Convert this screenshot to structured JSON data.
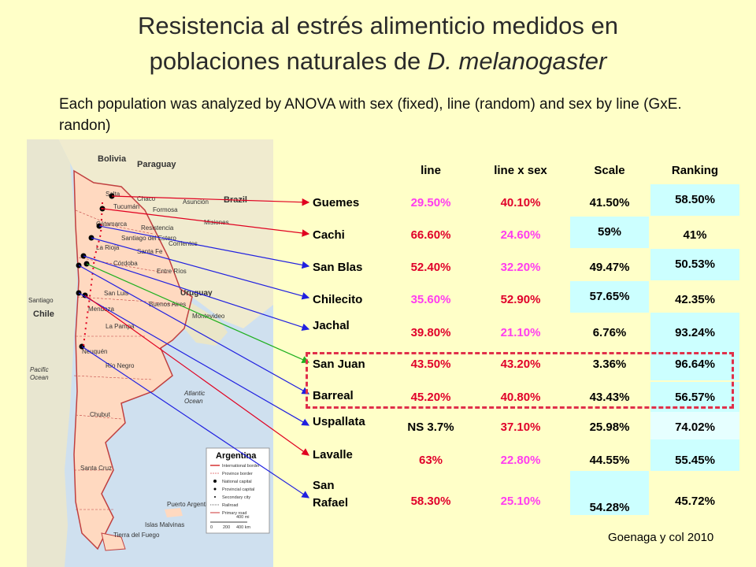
{
  "title": {
    "line1": "Resistencia al estrés  alimenticio medidos en",
    "line2_prefix": "poblaciones naturales de ",
    "line2_species": "D. melanogaster"
  },
  "subtitle": "Each population was analyzed by ANOVA with sex (fixed), line (random) and sex by line (GxE. randon)",
  "table": {
    "headers": {
      "line": "line",
      "line_x_sex": "line x sex",
      "scale": "Scale",
      "ranking": "Ranking"
    },
    "rows": [
      {
        "pop": "Guemes",
        "line": "29.50%",
        "lxs": "40.10%",
        "scale": "41.50%",
        "rank": "58.50%"
      },
      {
        "pop": "Cachi",
        "line": "66.60%",
        "lxs": "24.60%",
        "scale": "59%",
        "rank": "41%"
      },
      {
        "pop": "San Blas",
        "line": "52.40%",
        "lxs": "32.20%",
        "scale": "49.47%",
        "rank": "50.53%"
      },
      {
        "pop": "Chilecito",
        "line": "35.60%",
        "lxs": "52.90%",
        "scale": "57.65%",
        "rank": "42.35%"
      },
      {
        "pop": "Jachal",
        "line": "39.80%",
        "lxs": "21.10%",
        "scale": "6.76%",
        "rank": "93.24%"
      },
      {
        "pop": "San Juan",
        "line": "43.50%",
        "lxs": "43.20%",
        "scale": "3.36%",
        "rank": "96.64%"
      },
      {
        "pop": "Barreal",
        "line": "45.20%",
        "lxs": "40.80%",
        "scale": "43.43%",
        "rank": "56.57%"
      },
      {
        "pop": "Uspallata",
        "line": "NS 3.7%",
        "lxs": "37.10%",
        "scale": "25.98%",
        "rank": "74.02%"
      },
      {
        "pop": "Lavalle",
        "line": "63%",
        "lxs": "22.80%",
        "scale": "44.55%",
        "rank": "55.45%"
      },
      {
        "pop": "San Rafael",
        "line": "58.30%",
        "lxs": "25.10%",
        "scale": "54.28%",
        "rank": "45.72%"
      }
    ]
  },
  "map": {
    "legend_title": "Argentina",
    "legend_items": [
      "International border",
      "Province border",
      "National capital",
      "Provincial capital",
      "Secondary city",
      "Railroad",
      "Primary road"
    ],
    "scale_labels": [
      "0",
      "200",
      "400 km",
      "400 mi"
    ],
    "labels": {
      "bolivia": "Bolivia",
      "paraguay": "Paraguay",
      "brazil": "Brazil",
      "chile": "Chile",
      "uruguay": "Uruguay",
      "santiago": "Santiago",
      "buenos_aires": "Buenos Aires",
      "montevideo": "Montevideo",
      "pacific": "Pacific",
      "ocean_w": "Ocean",
      "atlantic": "Atlantic",
      "ocean_e": "Ocean",
      "salta": "Salta",
      "tucuman": "Tucumán",
      "chaco": "Chaco",
      "formosa": "Formosa",
      "asuncion": "Asunción",
      "misiones": "Misiones",
      "corrientes": "Corrientes",
      "resistencia": "Resistencia",
      "santa_fe": "Santa Fe",
      "cordoba": "Córdoba",
      "la_rioja": "La Rioja",
      "mendoza": "Mendoza",
      "san_luis": "San Luis",
      "la_pampa": "La Pampa",
      "neuquen": "Neuquén",
      "rio_negro": "Río Negro",
      "chubut": "Chubut",
      "santa_cruz": "Santa Cruz",
      "tierra_del_fuego": "Tierra del Fuego",
      "puerto_argentino": "Puerto Argentino",
      "islas_malvinas": "Islas Malvinas",
      "entre_rios": "Entre Ríos",
      "catamarca": "Catamarca",
      "santiago_del_estero": "Santiago del Estero"
    }
  },
  "credit": "Goenaga y col 2010",
  "colors": {
    "background": "#FFFFC8",
    "pink": "#ff3cf0",
    "red": "#e0002a",
    "cyan": "#ccffff",
    "highlight": "#e0304a"
  }
}
